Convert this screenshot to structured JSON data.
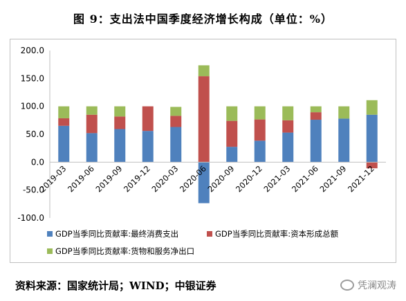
{
  "title": "图 9：支出法中国季度经济增长构成（单位：%）",
  "source": "资料来源：国家统计局；WIND；中银证券",
  "watermark": "凭澜观涛",
  "chart_data": {
    "type": "bar",
    "stacked": true,
    "categories": [
      "2019-03",
      "2019-06",
      "2019-09",
      "2019-12",
      "2020-03",
      "2020-06",
      "2020-09",
      "2020-12",
      "2021-03",
      "2021-06",
      "2021-09",
      "2021-12"
    ],
    "series": [
      {
        "name": "GDP当季同比贡献率:最终消费支出",
        "color": "#4f81bd",
        "values": [
          65.1,
          52.0,
          59.3,
          56.0,
          63.0,
          -73.5,
          27.5,
          38.5,
          53.0,
          76.0,
          78.0,
          85.0
        ]
      },
      {
        "name": "GDP当季同比贡献率:资本形成总额",
        "color": "#c0504d",
        "values": [
          13.5,
          33.0,
          22.5,
          44.0,
          20.0,
          154.0,
          46.5,
          38.0,
          22.0,
          13.5,
          0,
          -11.0
        ]
      },
      {
        "name": "GDP当季同比贡献率:货物和服务净出口",
        "color": "#9bbb59",
        "values": [
          21.4,
          15.0,
          18.2,
          0,
          16.0,
          19.5,
          26.0,
          23.5,
          25.0,
          10.5,
          22.0,
          26.0
        ]
      }
    ],
    "y_ticks": [
      "200.0",
      "150.0",
      "100.0",
      "50.0",
      "0.0",
      "-50.0",
      "-100.0"
    ],
    "ylim": [
      -100,
      200
    ],
    "grid": false,
    "legend_position": "bottom"
  }
}
